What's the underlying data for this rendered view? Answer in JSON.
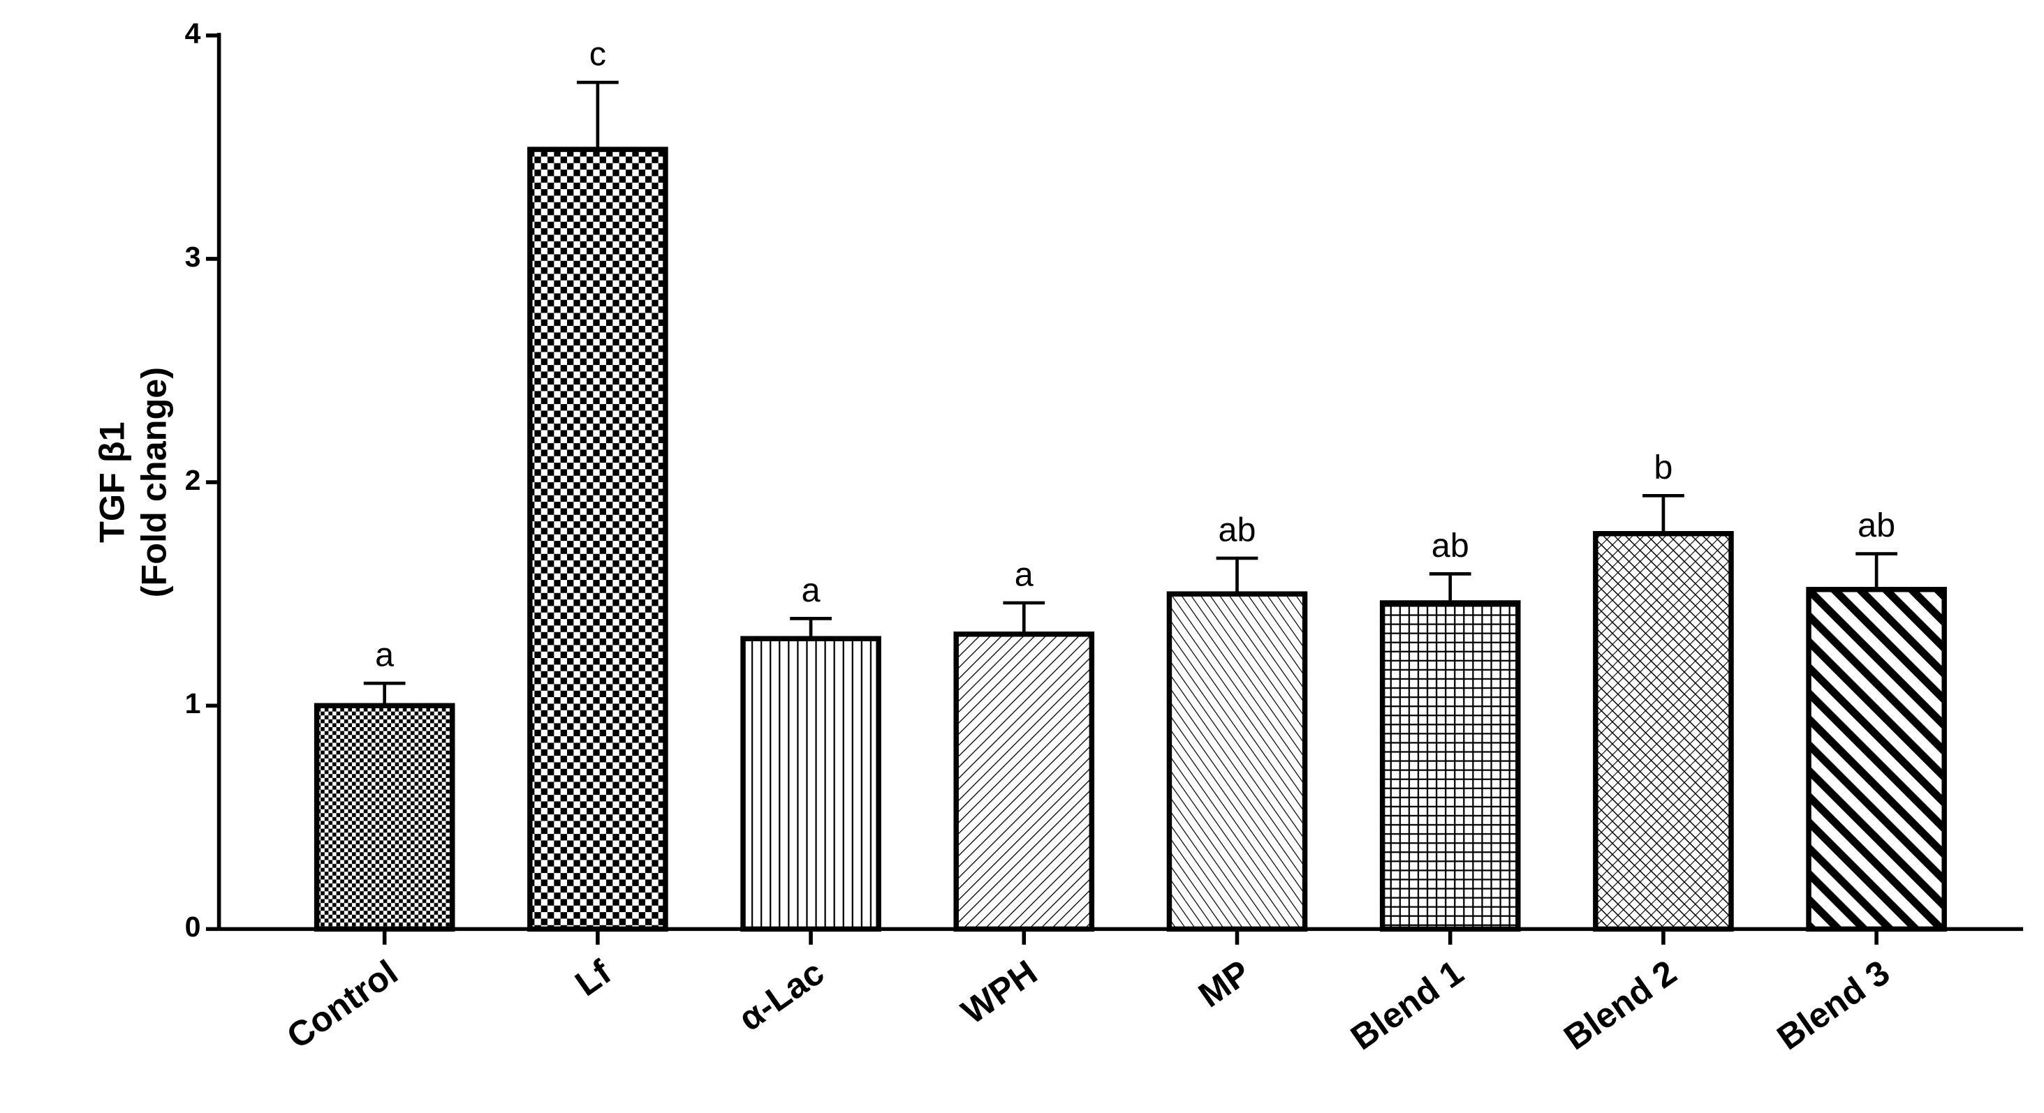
{
  "chart_data": {
    "type": "bar",
    "ylabel": [
      "TGF β1",
      "(Fold change)"
    ],
    "categories": [
      "Control",
      "Lf",
      "α-Lac",
      "WPH",
      "MP",
      "Blend 1",
      "Blend 2",
      "Blend 3"
    ],
    "values": [
      1.0,
      3.49,
      1.3,
      1.32,
      1.5,
      1.46,
      1.77,
      1.52
    ],
    "errors": [
      0.1,
      0.3,
      0.09,
      0.14,
      0.16,
      0.13,
      0.17,
      0.16
    ],
    "annotations": [
      "a",
      "c",
      "a",
      "a",
      "ab",
      "ab",
      "b",
      "ab"
    ],
    "color": "#000000",
    "ylim": [
      0,
      4
    ],
    "yticks": [
      0,
      1,
      2,
      3,
      4
    ]
  }
}
